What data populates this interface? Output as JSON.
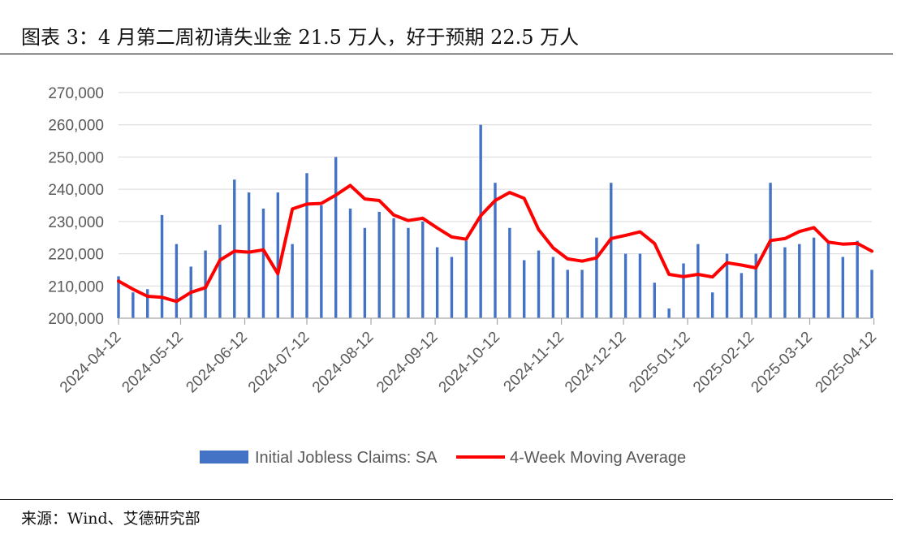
{
  "figure": {
    "title": "图表 3：4 月第二周初请失业金 21.5 万人，好于预期 22.5 万人",
    "source": "来源：Wind、艾德研究部"
  },
  "chart_data": {
    "type": "bar",
    "title": "",
    "xlabel": "",
    "ylabel": "",
    "ylim": [
      200000,
      270000
    ],
    "y_ticks": [
      "200,000",
      "210,000",
      "220,000",
      "230,000",
      "240,000",
      "250,000",
      "260,000",
      "270,000"
    ],
    "x_ticks": [
      "2024-04-12",
      "2024-05-12",
      "2024-06-12",
      "2024-07-12",
      "2024-08-12",
      "2024-09-12",
      "2024-10-12",
      "2024-11-12",
      "2024-12-12",
      "2025-01-12",
      "2025-02-12",
      "2025-03-12",
      "2025-04-12"
    ],
    "grid": true,
    "legend_position": "bottom-center",
    "colors": {
      "bars": "#4472C4",
      "line": "#FF0000",
      "grid": "#D9D9D9",
      "axis": "#A6A6A6"
    },
    "weeks": [
      "2024-04-12",
      "2024-04-19",
      "2024-04-26",
      "2024-05-03",
      "2024-05-10",
      "2024-05-17",
      "2024-05-24",
      "2024-05-31",
      "2024-06-07",
      "2024-06-14",
      "2024-06-21",
      "2024-06-28",
      "2024-07-05",
      "2024-07-12",
      "2024-07-19",
      "2024-07-26",
      "2024-08-02",
      "2024-08-09",
      "2024-08-16",
      "2024-08-23",
      "2024-08-30",
      "2024-09-06",
      "2024-09-13",
      "2024-09-20",
      "2024-09-27",
      "2024-10-04",
      "2024-10-11",
      "2024-10-18",
      "2024-10-25",
      "2024-11-01",
      "2024-11-08",
      "2024-11-15",
      "2024-11-22",
      "2024-11-29",
      "2024-12-06",
      "2024-12-13",
      "2024-12-20",
      "2024-12-27",
      "2025-01-03",
      "2025-01-10",
      "2025-01-17",
      "2025-01-24",
      "2025-01-31",
      "2025-02-07",
      "2025-02-14",
      "2025-02-21",
      "2025-02-28",
      "2025-03-07",
      "2025-03-14",
      "2025-03-21",
      "2025-03-28",
      "2025-04-04",
      "2025-04-11"
    ],
    "series": [
      {
        "name": "Initial Jobless Claims: SA",
        "type": "bar",
        "values": [
          213000,
          208000,
          209000,
          232000,
          223000,
          216000,
          221000,
          229000,
          243000,
          239000,
          234000,
          239000,
          223000,
          245000,
          235000,
          250000,
          234000,
          228000,
          233000,
          231000,
          228000,
          230000,
          222000,
          219000,
          224000,
          260000,
          242000,
          228000,
          218000,
          221000,
          219000,
          215000,
          215000,
          225000,
          242000,
          220000,
          220000,
          211000,
          203000,
          217000,
          223000,
          208000,
          220000,
          214000,
          220000,
          242000,
          222000,
          223000,
          225000,
          224000,
          219000,
          224000,
          215000
        ]
      },
      {
        "name": "4-Week Moving Average",
        "type": "line",
        "values": [
          211500,
          209000,
          206800,
          206500,
          205200,
          208000,
          209500,
          218000,
          220800,
          220500,
          221200,
          213800,
          233900,
          235400,
          235600,
          238200,
          241200,
          237000,
          236500,
          232000,
          230300,
          231000,
          228000,
          225200,
          224500,
          231800,
          236500,
          239000,
          237200,
          227500,
          221800,
          218400,
          217700,
          218700,
          224700,
          225700,
          226800,
          223200,
          213600,
          212900,
          213600,
          212800,
          217200,
          216500,
          215600,
          224100,
          224700,
          226900,
          228100,
          223600,
          223000,
          223200,
          220800
        ]
      }
    ]
  }
}
